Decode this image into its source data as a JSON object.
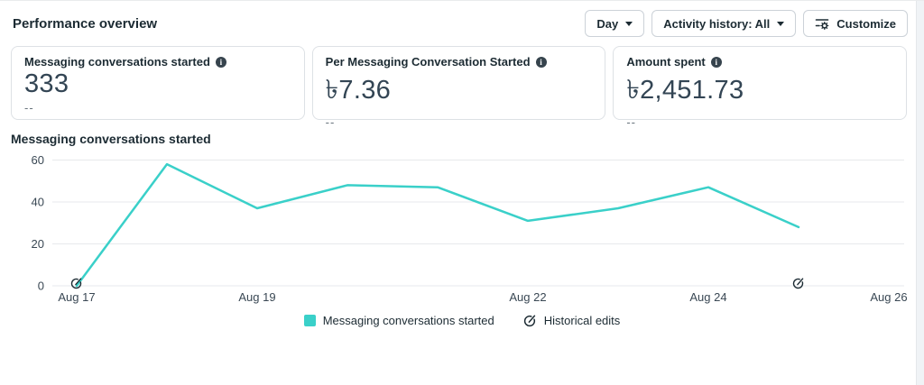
{
  "header": {
    "title": "Performance overview",
    "controls": {
      "day_label": "Day",
      "day_icon": "chevron-down-icon",
      "activity_history_label": "Activity history: All",
      "activity_history_icon": "chevron-down-icon",
      "customize_label": "Customize",
      "customize_icon": "settings-sliders-gear-icon"
    }
  },
  "metrics": [
    {
      "label": "Messaging conversations started",
      "icon": "info-icon",
      "value": "333",
      "secondary": "--"
    },
    {
      "label": "Per Messaging Conversation Started",
      "icon": "info-icon",
      "value": "৳7.36",
      "secondary": "--"
    },
    {
      "label": "Amount spent",
      "icon": "info-icon",
      "value": "৳2,451.73",
      "secondary": "--"
    }
  ],
  "chart_section": {
    "title": "Messaging conversations started"
  },
  "chart_data": {
    "type": "line",
    "title": "Messaging conversations started",
    "x_domain": [
      "Aug 17",
      "Aug 18",
      "Aug 19",
      "Aug 20",
      "Aug 21",
      "Aug 22",
      "Aug 23",
      "Aug 24",
      "Aug 25",
      "Aug 26"
    ],
    "series": [
      {
        "name": "Messaging conversations started",
        "x": [
          "Aug 17",
          "Aug 18",
          "Aug 19",
          "Aug 20",
          "Aug 21",
          "Aug 22",
          "Aug 23",
          "Aug 24",
          "Aug 25"
        ],
        "values": [
          0,
          58,
          37,
          48,
          47,
          31,
          37,
          47,
          28
        ]
      }
    ],
    "x_tick_labels": [
      "Aug 17",
      "Aug 19",
      "Aug 22",
      "Aug 24",
      "Aug 26"
    ],
    "y_ticks": [
      0,
      20,
      40,
      60
    ],
    "ylim": [
      0,
      60
    ],
    "grid": true,
    "line_color": "#3ad0c9",
    "grid_color": "#e7e9ec",
    "historical_edits": {
      "dates": [
        "Aug 17",
        "Aug 25"
      ],
      "icon": "historical-edit-icon"
    },
    "legend": [
      {
        "label": "Messaging conversations started",
        "marker": "teal-square-swatch"
      },
      {
        "label": "Historical edits",
        "marker": "historical-edit-icon"
      }
    ],
    "legend_position": "bottom-center"
  }
}
